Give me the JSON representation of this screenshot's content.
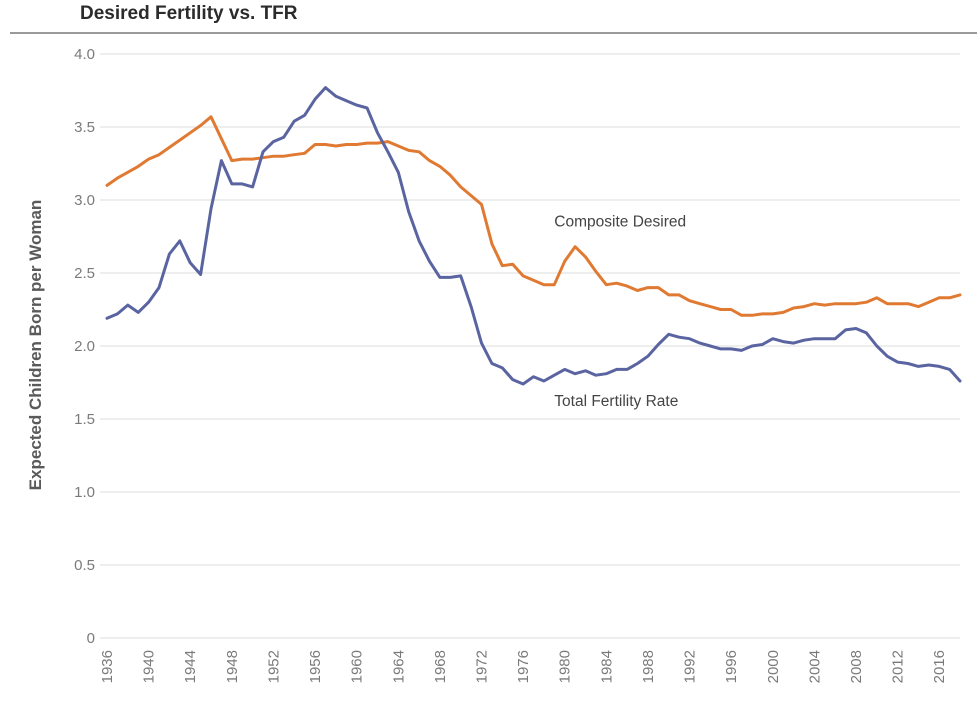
{
  "chart_data": {
    "type": "line",
    "title": "Desired Fertility vs. TFR",
    "xlabel": "",
    "ylabel": "Expected Children Born per Woman",
    "xlim": [
      1936,
      2018
    ],
    "ylim": [
      0,
      4.0
    ],
    "grid": true,
    "yticks": [
      {
        "value": 0,
        "label": "0"
      },
      {
        "value": 0.5,
        "label": "0.5"
      },
      {
        "value": 1.0,
        "label": "1.0"
      },
      {
        "value": 1.5,
        "label": "1.5"
      },
      {
        "value": 2.0,
        "label": "2.0"
      },
      {
        "value": 2.5,
        "label": "2.5"
      },
      {
        "value": 3.0,
        "label": "3.0"
      },
      {
        "value": 3.5,
        "label": "3.5"
      },
      {
        "value": 4.0,
        "label": "4.0"
      }
    ],
    "xticks": [
      {
        "value": 1936,
        "label": "1936"
      },
      {
        "value": 1940,
        "label": "1940"
      },
      {
        "value": 1944,
        "label": "1944"
      },
      {
        "value": 1948,
        "label": "1948"
      },
      {
        "value": 1952,
        "label": "1952"
      },
      {
        "value": 1956,
        "label": "1956"
      },
      {
        "value": 1960,
        "label": "1960"
      },
      {
        "value": 1964,
        "label": "1964"
      },
      {
        "value": 1968,
        "label": "1968"
      },
      {
        "value": 1972,
        "label": "1972"
      },
      {
        "value": 1976,
        "label": "1976"
      },
      {
        "value": 1980,
        "label": "1980"
      },
      {
        "value": 1984,
        "label": "1984"
      },
      {
        "value": 1988,
        "label": "1988"
      },
      {
        "value": 1992,
        "label": "1992"
      },
      {
        "value": 1996,
        "label": "1996"
      },
      {
        "value": 2000,
        "label": "2000"
      },
      {
        "value": 2004,
        "label": "2004"
      },
      {
        "value": 2008,
        "label": "2008"
      },
      {
        "value": 2012,
        "label": "2012"
      },
      {
        "value": 2016,
        "label": "2016"
      }
    ],
    "series": [
      {
        "name": "Composite Desired",
        "color": "#e07a32",
        "x": [
          1936,
          1937,
          1938,
          1939,
          1940,
          1941,
          1942,
          1943,
          1944,
          1945,
          1946,
          1947,
          1948,
          1949,
          1950,
          1951,
          1952,
          1953,
          1954,
          1955,
          1956,
          1957,
          1958,
          1959,
          1960,
          1961,
          1962,
          1963,
          1964,
          1965,
          1966,
          1967,
          1968,
          1969,
          1970,
          1971,
          1972,
          1973,
          1974,
          1975,
          1976,
          1977,
          1978,
          1979,
          1980,
          1981,
          1982,
          1983,
          1984,
          1985,
          1986,
          1987,
          1988,
          1989,
          1990,
          1991,
          1992,
          1993,
          1994,
          1995,
          1996,
          1997,
          1998,
          1999,
          2000,
          2001,
          2002,
          2003,
          2004,
          2005,
          2006,
          2007,
          2008,
          2009,
          2010,
          2011,
          2012,
          2013,
          2014,
          2015,
          2016,
          2017,
          2018
        ],
        "y": [
          3.1,
          3.15,
          3.19,
          3.23,
          3.28,
          3.31,
          3.36,
          3.41,
          3.46,
          3.51,
          3.57,
          3.42,
          3.27,
          3.28,
          3.28,
          3.29,
          3.3,
          3.3,
          3.31,
          3.32,
          3.38,
          3.38,
          3.37,
          3.38,
          3.38,
          3.39,
          3.39,
          3.4,
          3.37,
          3.34,
          3.33,
          3.27,
          3.23,
          3.17,
          3.09,
          3.03,
          2.97,
          2.7,
          2.55,
          2.56,
          2.48,
          2.45,
          2.42,
          2.42,
          2.58,
          2.68,
          2.61,
          2.51,
          2.42,
          2.43,
          2.41,
          2.38,
          2.4,
          2.4,
          2.35,
          2.35,
          2.31,
          2.29,
          2.27,
          2.25,
          2.25,
          2.21,
          2.21,
          2.22,
          2.22,
          2.23,
          2.26,
          2.27,
          2.29,
          2.28,
          2.29,
          2.29,
          2.29,
          2.3,
          2.33,
          2.29,
          2.29,
          2.29,
          2.27,
          2.3,
          2.33,
          2.33,
          2.35
        ]
      },
      {
        "name": "Total Fertility Rate",
        "color": "#5a64a0",
        "x": [
          1936,
          1937,
          1938,
          1939,
          1940,
          1941,
          1942,
          1943,
          1944,
          1945,
          1946,
          1947,
          1948,
          1949,
          1950,
          1951,
          1952,
          1953,
          1954,
          1955,
          1956,
          1957,
          1958,
          1959,
          1960,
          1961,
          1962,
          1963,
          1964,
          1965,
          1966,
          1967,
          1968,
          1969,
          1970,
          1971,
          1972,
          1973,
          1974,
          1975,
          1976,
          1977,
          1978,
          1979,
          1980,
          1981,
          1982,
          1983,
          1984,
          1985,
          1986,
          1987,
          1988,
          1989,
          1990,
          1991,
          1992,
          1993,
          1994,
          1995,
          1996,
          1997,
          1998,
          1999,
          2000,
          2001,
          2002,
          2003,
          2004,
          2005,
          2006,
          2007,
          2008,
          2009,
          2010,
          2011,
          2012,
          2013,
          2014,
          2015,
          2016,
          2017,
          2018
        ],
        "y": [
          2.19,
          2.22,
          2.28,
          2.23,
          2.3,
          2.4,
          2.63,
          2.72,
          2.57,
          2.49,
          2.94,
          3.27,
          3.11,
          3.11,
          3.09,
          3.33,
          3.4,
          3.43,
          3.54,
          3.58,
          3.69,
          3.77,
          3.71,
          3.68,
          3.65,
          3.63,
          3.46,
          3.33,
          3.19,
          2.92,
          2.72,
          2.58,
          2.47,
          2.47,
          2.48,
          2.27,
          2.02,
          1.88,
          1.85,
          1.77,
          1.74,
          1.79,
          1.76,
          1.8,
          1.84,
          1.81,
          1.83,
          1.8,
          1.81,
          1.84,
          1.84,
          1.88,
          1.93,
          2.01,
          2.08,
          2.06,
          2.05,
          2.02,
          2.0,
          1.98,
          1.98,
          1.97,
          2.0,
          2.01,
          2.05,
          2.03,
          2.02,
          2.04,
          2.05,
          2.05,
          2.05,
          2.11,
          2.12,
          2.09,
          2.0,
          1.93,
          1.89,
          1.88,
          1.86,
          1.87,
          1.86,
          1.84,
          1.76
        ]
      }
    ],
    "annotations": [
      {
        "text": "Composite Desired",
        "x": 1979,
        "y": 2.82
      },
      {
        "text": "Total Fertility Rate",
        "x": 1979,
        "y": 1.59
      }
    ]
  }
}
